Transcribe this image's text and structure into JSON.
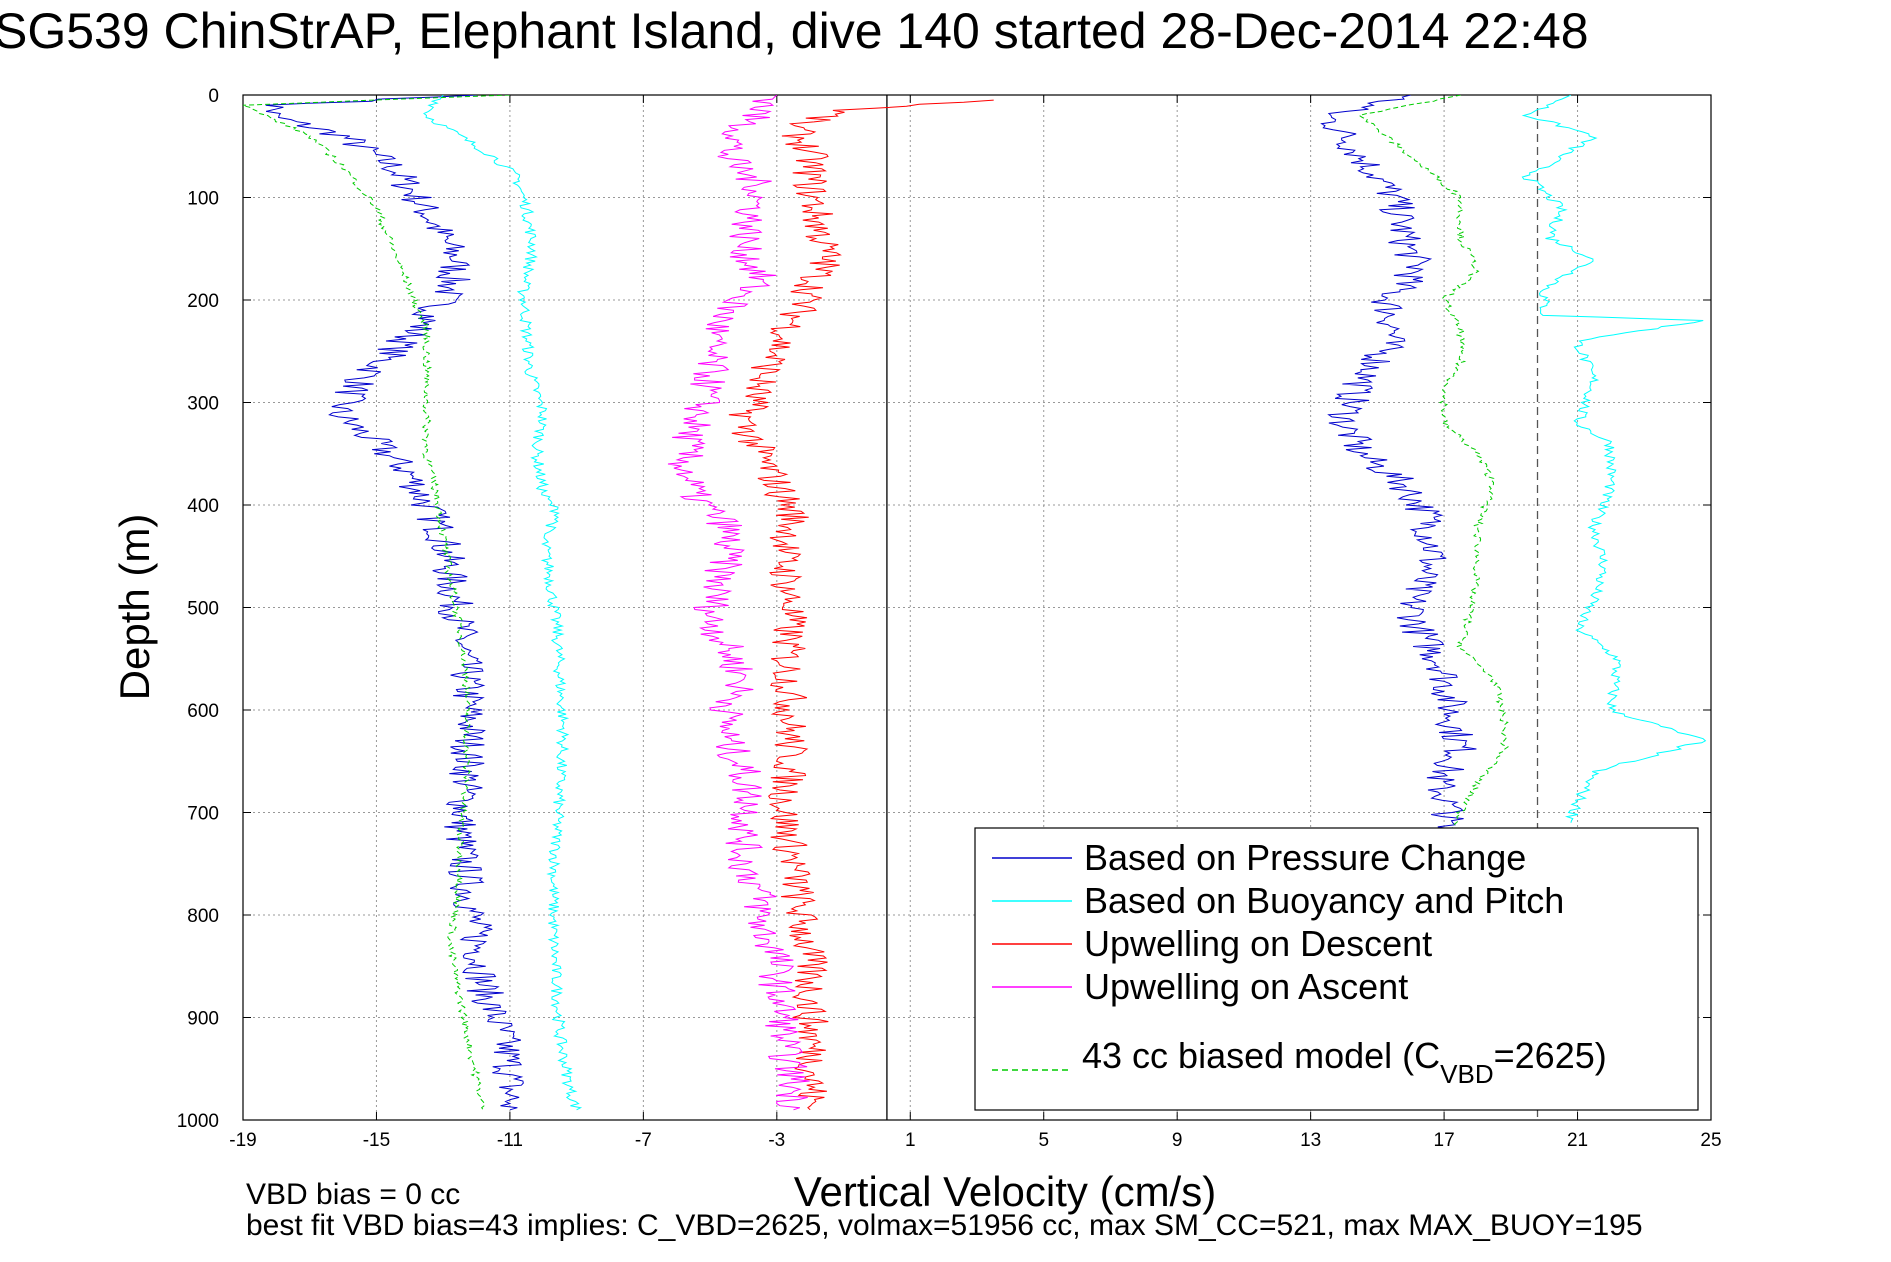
{
  "chart_data": {
    "type": "line",
    "title": "SG539 ChinStrAP, Elephant Island, dive 140 started 28-Dec-2014 22:48",
    "xlabel": "Vertical Velocity (cm/s)",
    "ylabel": "Depth (m)",
    "xlim": [
      -19,
      25
    ],
    "ylim": [
      0,
      1000
    ],
    "y_reversed": true,
    "xticks": [
      -19,
      -15,
      -11,
      -7,
      -3,
      1,
      5,
      9,
      13,
      17,
      21,
      25
    ],
    "yticks": [
      0,
      100,
      200,
      300,
      400,
      500,
      600,
      700,
      800,
      900,
      1000
    ],
    "grid": true,
    "legend_position": "bottom-right",
    "reference_lines": [
      {
        "orientation": "vertical",
        "x": 0.3,
        "color": "#000000",
        "style": "solid"
      },
      {
        "orientation": "vertical",
        "x": 19.8,
        "color": "#555555",
        "style": "dashed"
      }
    ],
    "series": [
      {
        "name": "Based on Pressure Change",
        "color": "#0000cc",
        "style": "solid",
        "profiles": [
          {
            "points": [
              [
                -12,
                0
              ],
              [
                -18,
                10
              ],
              [
                -18.2,
                20
              ],
              [
                -16,
                40
              ],
              [
                -14.5,
                70
              ],
              [
                -13.8,
                100
              ],
              [
                -13.2,
                130
              ],
              [
                -12.6,
                160
              ],
              [
                -12.8,
                190
              ],
              [
                -13.5,
                220
              ],
              [
                -14.5,
                250
              ],
              [
                -15.5,
                280
              ],
              [
                -16.2,
                310
              ],
              [
                -15,
                340
              ],
              [
                -14,
                370
              ],
              [
                -13.5,
                400
              ],
              [
                -13,
                430
              ],
              [
                -12.8,
                470
              ],
              [
                -12.5,
                520
              ],
              [
                -12.3,
                570
              ],
              [
                -12.2,
                620
              ],
              [
                -12.3,
                670
              ],
              [
                -12.5,
                720
              ],
              [
                -12.3,
                770
              ],
              [
                -12,
                820
              ],
              [
                -11.8,
                870
              ],
              [
                -11.2,
                920
              ],
              [
                -11,
                950
              ],
              [
                -11,
                990
              ]
            ]
          },
          {
            "points": [
              [
                16,
                0
              ],
              [
                13.5,
                20
              ],
              [
                14.5,
                60
              ],
              [
                15.5,
                100
              ],
              [
                15.8,
                140
              ],
              [
                16.2,
                170
              ],
              [
                15.3,
                200
              ],
              [
                15.5,
                230
              ],
              [
                15,
                260
              ],
              [
                14.3,
                290
              ],
              [
                14,
                320
              ],
              [
                14.5,
                350
              ],
              [
                15.8,
                380
              ],
              [
                16.5,
                410
              ],
              [
                16.7,
                450
              ],
              [
                16,
                490
              ],
              [
                16.2,
                520
              ],
              [
                17,
                560
              ],
              [
                17.2,
                600
              ],
              [
                17.5,
                640
              ],
              [
                16.8,
                670
              ],
              [
                17.2,
                700
              ],
              [
                16.8,
                720
              ]
            ]
          }
        ]
      },
      {
        "name": "Based on Buoyancy and Pitch",
        "color": "#00ffff",
        "style": "solid",
        "profiles": [
          {
            "points": [
              [
                -13,
                0
              ],
              [
                -13.5,
                20
              ],
              [
                -12.5,
                40
              ],
              [
                -11.5,
                60
              ],
              [
                -10.8,
                80
              ],
              [
                -10.5,
                110
              ],
              [
                -10.3,
                150
              ],
              [
                -10.6,
                190
              ],
              [
                -10.5,
                230
              ],
              [
                -10.4,
                270
              ],
              [
                -10,
                310
              ],
              [
                -10.2,
                350
              ],
              [
                -10,
                390
              ],
              [
                -9.5,
                410
              ],
              [
                -10,
                430
              ],
              [
                -9.8,
                470
              ],
              [
                -9.6,
                520
              ],
              [
                -9.5,
                570
              ],
              [
                -9.4,
                620
              ],
              [
                -9.5,
                670
              ],
              [
                -9.6,
                720
              ],
              [
                -9.7,
                770
              ],
              [
                -9.7,
                820
              ],
              [
                -9.6,
                870
              ],
              [
                -9.5,
                920
              ],
              [
                -9.2,
                970
              ],
              [
                -9,
                990
              ]
            ]
          },
          {
            "points": [
              [
                20.8,
                0
              ],
              [
                19.5,
                20
              ],
              [
                21.5,
                40
              ],
              [
                20.5,
                60
              ],
              [
                19.5,
                80
              ],
              [
                20.5,
                110
              ],
              [
                20.2,
                140
              ],
              [
                21.5,
                160
              ],
              [
                20,
                190
              ],
              [
                20,
                215
              ],
              [
                24.8,
                220
              ],
              [
                21,
                240
              ],
              [
                21.5,
                280
              ],
              [
                21,
                320
              ],
              [
                22,
                340
              ],
              [
                22,
                380
              ],
              [
                21.5,
                420
              ],
              [
                21.8,
                460
              ],
              [
                21.5,
                490
              ],
              [
                21,
                520
              ],
              [
                22.2,
                550
              ],
              [
                22,
                600
              ],
              [
                24.8,
                630
              ],
              [
                21.5,
                660
              ],
              [
                21,
                690
              ],
              [
                20.8,
                710
              ]
            ]
          }
        ]
      },
      {
        "name": "Upwelling on Descent",
        "color": "#ff0000",
        "style": "solid",
        "profiles": [
          {
            "points": [
              [
                3.5,
                5
              ],
              [
                -1,
                15
              ],
              [
                -2.5,
                30
              ],
              [
                -2,
                60
              ],
              [
                -2,
                90
              ],
              [
                -1.8,
                120
              ],
              [
                -1.5,
                160
              ],
              [
                -2,
                190
              ],
              [
                -2.5,
                220
              ],
              [
                -3,
                250
              ],
              [
                -3.5,
                280
              ],
              [
                -4,
                320
              ],
              [
                -3.5,
                350
              ],
              [
                -3,
                380
              ],
              [
                -2.5,
                410
              ],
              [
                -2.8,
                450
              ],
              [
                -2.6,
                500
              ],
              [
                -2.7,
                550
              ],
              [
                -2.6,
                600
              ],
              [
                -2.6,
                650
              ],
              [
                -2.8,
                700
              ],
              [
                -2.5,
                750
              ],
              [
                -2.3,
                800
              ],
              [
                -2,
                850
              ],
              [
                -2,
                900
              ],
              [
                -1.9,
                950
              ],
              [
                -2,
                990
              ]
            ]
          }
        ]
      },
      {
        "name": "Upwelling on Ascent",
        "color": "#ff00ff",
        "style": "solid",
        "profiles": [
          {
            "points": [
              [
                -3,
                0
              ],
              [
                -4,
                30
              ],
              [
                -4.5,
                60
              ],
              [
                -3.5,
                90
              ],
              [
                -3.8,
                120
              ],
              [
                -4,
                150
              ],
              [
                -3.5,
                180
              ],
              [
                -4.5,
                210
              ],
              [
                -5,
                240
              ],
              [
                -5,
                270
              ],
              [
                -5.2,
                300
              ],
              [
                -5.6,
                330
              ],
              [
                -5.8,
                360
              ],
              [
                -5.5,
                390
              ],
              [
                -4.5,
                420
              ],
              [
                -4.5,
                450
              ],
              [
                -4.8,
                480
              ],
              [
                -5,
                510
              ],
              [
                -4.5,
                540
              ],
              [
                -4,
                570
              ],
              [
                -4.5,
                600
              ],
              [
                -4.5,
                630
              ],
              [
                -4,
                660
              ],
              [
                -3.8,
                690
              ],
              [
                -4,
                720
              ],
              [
                -4,
                750
              ],
              [
                -3.5,
                780
              ],
              [
                -3.5,
                810
              ],
              [
                -3,
                840
              ],
              [
                -3,
                870
              ],
              [
                -2.8,
                900
              ],
              [
                -2.8,
                930
              ],
              [
                -2.5,
                960
              ],
              [
                -2.5,
                990
              ]
            ]
          }
        ]
      },
      {
        "name": "43 cc biased model (C_VBD=2625)",
        "color": "#00cc00",
        "style": "dashed",
        "profiles": [
          {
            "points": [
              [
                -11,
                0
              ],
              [
                -19,
                10
              ],
              [
                -17,
                40
              ],
              [
                -16,
                70
              ],
              [
                -15,
                110
              ],
              [
                -14.5,
                150
              ],
              [
                -14,
                190
              ],
              [
                -13.5,
                230
              ],
              [
                -13.5,
                270
              ],
              [
                -13.5,
                310
              ],
              [
                -13.5,
                350
              ],
              [
                -13.2,
                390
              ],
              [
                -13,
                430
              ],
              [
                -12.8,
                470
              ],
              [
                -12.5,
                520
              ],
              [
                -12.3,
                570
              ],
              [
                -12.3,
                620
              ],
              [
                -12.3,
                670
              ],
              [
                -12.5,
                720
              ],
              [
                -12.5,
                770
              ],
              [
                -12.8,
                830
              ],
              [
                -12.5,
                880
              ],
              [
                -12.2,
                930
              ],
              [
                -12,
                960
              ],
              [
                -11.8,
                990
              ]
            ]
          },
          {
            "points": [
              [
                17.5,
                0
              ],
              [
                14.5,
                20
              ],
              [
                16,
                60
              ],
              [
                17.5,
                100
              ],
              [
                17.5,
                140
              ],
              [
                18,
                170
              ],
              [
                17,
                200
              ],
              [
                17.5,
                230
              ],
              [
                17.5,
                260
              ],
              [
                17,
                290
              ],
              [
                17,
                320
              ],
              [
                18,
                350
              ],
              [
                18.5,
                380
              ],
              [
                18,
                420
              ],
              [
                18,
                460
              ],
              [
                17.8,
                500
              ],
              [
                17.5,
                540
              ],
              [
                18.5,
                570
              ],
              [
                18.8,
                610
              ],
              [
                18.8,
                640
              ],
              [
                18,
                670
              ],
              [
                17.5,
                700
              ],
              [
                17.3,
                720
              ]
            ]
          }
        ]
      }
    ]
  },
  "legend": {
    "entries": [
      {
        "label": "Based on Pressure Change",
        "color": "#0000cc",
        "style": "solid"
      },
      {
        "label": "Based on Buoyancy and Pitch",
        "color": "#00ffff",
        "style": "solid"
      },
      {
        "label": "Upwelling on Descent",
        "color": "#ff0000",
        "style": "solid"
      },
      {
        "label": "Upwelling on Ascent",
        "color": "#ff00ff",
        "style": "solid"
      }
    ],
    "model_label_prefix": "43 cc biased model (C",
    "model_label_subscript": "VBD",
    "model_label_suffix": "=2625)",
    "model_color": "#00cc00"
  },
  "notes": {
    "line1": "VBD bias = 0 cc",
    "line2": "best fit VBD bias=43 implies: C_VBD=2625, volmax=51956 cc, max SM_CC=521, max MAX_BUOY=195"
  }
}
